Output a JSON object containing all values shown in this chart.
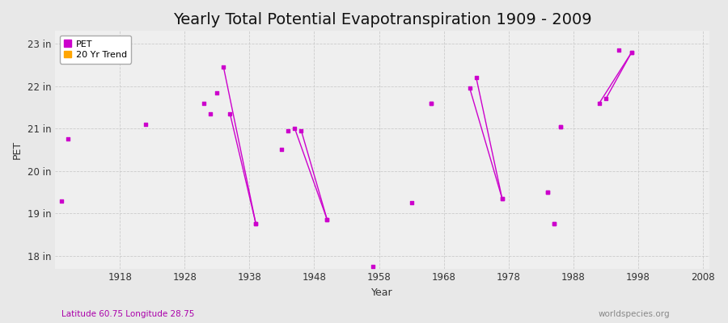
{
  "title": "Yearly Total Potential Evapotranspiration 1909 - 2009",
  "xlabel": "Year",
  "ylabel": "PET",
  "bottom_left_label": "Latitude 60.75 Longitude 28.75",
  "bottom_right_label": "worldspecies.org",
  "ylim": [
    17.7,
    23.3
  ],
  "xlim": [
    1908,
    2009
  ],
  "ytick_labels": [
    "18 in",
    "19 in",
    "20 in",
    "21 in",
    "22 in",
    "23 in"
  ],
  "ytick_values": [
    18,
    19,
    20,
    21,
    22,
    23
  ],
  "xtick_values": [
    1918,
    1928,
    1938,
    1948,
    1958,
    1968,
    1978,
    1988,
    1998,
    2008
  ],
  "pet_color": "#CC00CC",
  "trend_color": "#FFA500",
  "background_color": "#E8E8E8",
  "plot_bg_color": "#EFEFEF",
  "grid_major_color": "#CCCCCC",
  "grid_minor_color": "#DDDDDD",
  "pet_scatter": [
    [
      1909,
      19.3
    ],
    [
      1910,
      20.75
    ],
    [
      1922,
      21.1
    ],
    [
      1931,
      21.6
    ],
    [
      1932,
      21.35
    ],
    [
      1933,
      21.85
    ],
    [
      1943,
      20.5
    ],
    [
      1944,
      20.95
    ],
    [
      1957,
      17.75
    ],
    [
      1963,
      19.25
    ],
    [
      1966,
      21.6
    ],
    [
      1984,
      19.5
    ],
    [
      1985,
      18.75
    ],
    [
      1986,
      21.05
    ]
  ],
  "trend_line_segments": [
    [
      [
        1934,
        22.45
      ],
      [
        1939,
        18.75
      ]
    ],
    [
      [
        1935,
        21.35
      ],
      [
        1939,
        18.75
      ]
    ],
    [
      [
        1945,
        21.0
      ],
      [
        1950,
        18.85
      ]
    ],
    [
      [
        1946,
        20.95
      ],
      [
        1950,
        18.85
      ]
    ],
    [
      [
        1972,
        21.95
      ],
      [
        1977,
        19.35
      ]
    ],
    [
      [
        1973,
        22.2
      ],
      [
        1977,
        19.35
      ]
    ],
    [
      [
        1992,
        21.6
      ],
      [
        1997,
        22.8
      ]
    ],
    [
      [
        1993,
        21.7
      ],
      [
        1997,
        22.8
      ]
    ]
  ],
  "trend_scatter": [
    [
      1966,
      21.6
    ],
    [
      1984,
      19.5
    ],
    [
      1985,
      18.75
    ],
    [
      1986,
      21.05
    ],
    [
      1995,
      22.85
    ]
  ],
  "legend_pet_label": "PET",
  "legend_trend_label": "20 Yr Trend",
  "title_fontsize": 14,
  "axis_label_fontsize": 9,
  "tick_fontsize": 8.5,
  "legend_fontsize": 8
}
